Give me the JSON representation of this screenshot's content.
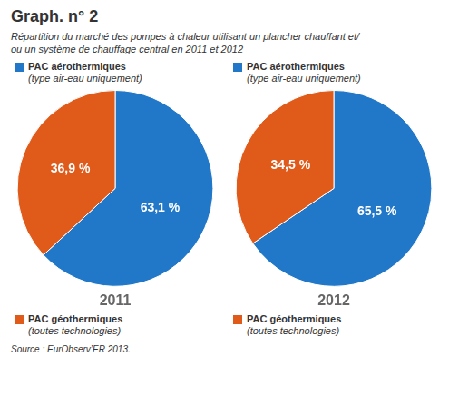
{
  "title": "Graph. n° 2",
  "subtitle": [
    "Répartition du marché des pompes à chaleur utilisant un plancher chauffant et/",
    "ou un système de chauffage central en 2011 et 2012"
  ],
  "source": "Source : EurObserv’ER 2013.",
  "chart_data": [
    {
      "type": "pie",
      "title": "2011",
      "categories": [
        "PAC aérothermiques",
        "PAC géothermiques"
      ],
      "annotations": [
        "(type air-eau uniquement)",
        "(toutes technologies)"
      ],
      "values": [
        63.1,
        36.9
      ],
      "value_labels": [
        "63,1 %",
        "36,9 %"
      ],
      "colors": [
        "#2177c8",
        "#e05a1a"
      ],
      "data_labels": true
    },
    {
      "type": "pie",
      "title": "2012",
      "categories": [
        "PAC aérothermiques",
        "PAC géothermiques"
      ],
      "annotations": [
        "(type air-eau uniquement)",
        "(toutes technologies)"
      ],
      "values": [
        65.5,
        34.5
      ],
      "value_labels": [
        "65,5 %",
        "34,5 %"
      ],
      "colors": [
        "#2177c8",
        "#e05a1a"
      ],
      "data_labels": true
    }
  ]
}
